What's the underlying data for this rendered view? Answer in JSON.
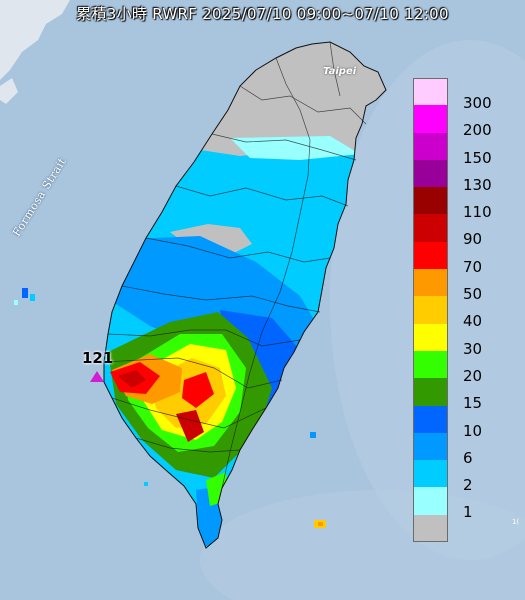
{
  "title": "累積3小時 RWRF 2025/07/10 09:00~07/10 12:00",
  "map_labels": {
    "strait": "Formosa Strait",
    "city": "Taipei",
    "station_number": "121"
  },
  "legend": {
    "items": [
      {
        "label": "300",
        "color": "#ffccff"
      },
      {
        "label": "200",
        "color": "#ff00ff"
      },
      {
        "label": "150",
        "color": "#cc00cc"
      },
      {
        "label": "130",
        "color": "#990099"
      },
      {
        "label": "110",
        "color": "#990000"
      },
      {
        "label": "90",
        "color": "#cc0000"
      },
      {
        "label": "70",
        "color": "#ff0000"
      },
      {
        "label": "50",
        "color": "#ff9900"
      },
      {
        "label": "40",
        "color": "#ffcc00"
      },
      {
        "label": "30",
        "color": "#ffff00"
      },
      {
        "label": "20",
        "color": "#33ff00"
      },
      {
        "label": "15",
        "color": "#339900"
      },
      {
        "label": "10",
        "color": "#0066ff"
      },
      {
        "label": "6",
        "color": "#0099ff"
      },
      {
        "label": "2",
        "color": "#00ccff"
      },
      {
        "label": "1",
        "color": "#99ffff"
      },
      {
        "label": "",
        "color": "#c0c0c0"
      }
    ]
  }
}
